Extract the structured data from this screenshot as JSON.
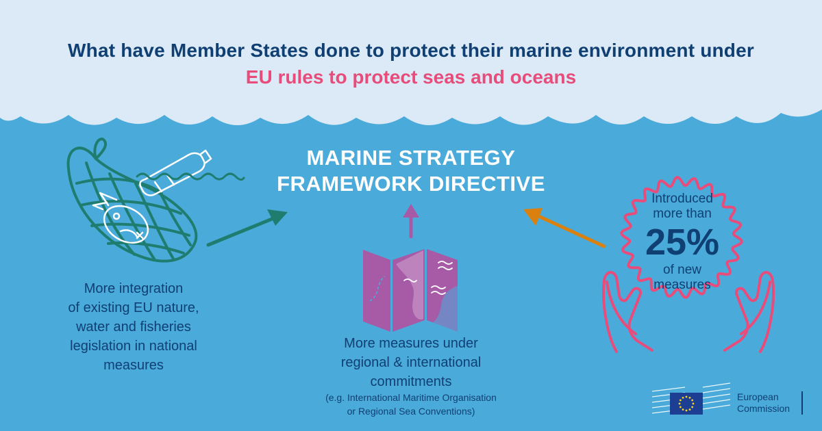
{
  "header": {
    "title": "What have Member States done to protect their marine environment under",
    "subtitle": "EU rules to protect seas and oceans"
  },
  "center": {
    "title_line1": "MARINE STRATEGY",
    "title_line2": "FRAMEWORK DIRECTIVE"
  },
  "left": {
    "caption_lines": [
      "More integration",
      "of existing EU nature,",
      "water and fisheries",
      "legislation in national",
      "measures"
    ]
  },
  "middle": {
    "caption_lines": [
      "More measures under",
      "regional & international",
      "commitments"
    ],
    "note_lines": [
      "(e.g. International Maritime Organisation",
      "or Regional Sea Conventions)"
    ]
  },
  "right": {
    "badge_line1": "Introduced",
    "badge_line2": "more than",
    "badge_value": "25%",
    "badge_line3": "of new",
    "badge_line4": "measures"
  },
  "logo": {
    "line1": "European",
    "line2": "Commission"
  },
  "colors": {
    "sky": "#dbeaf6",
    "sea": "#4aabdb",
    "navy": "#0f3f73",
    "pink": "#e84c7b",
    "green": "#1f7d6f",
    "purple": "#a75aa6",
    "orange": "#d9800f"
  },
  "icons": [
    "fishing-net-icon",
    "fish-icon",
    "plastic-bottle-icon",
    "map-icon",
    "hands-icon",
    "badge-seal-icon",
    "eu-flag-icon"
  ]
}
